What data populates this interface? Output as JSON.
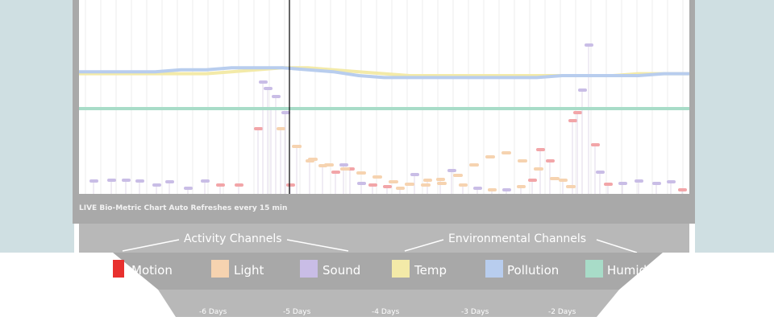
{
  "banner_text": "LIVE Bio-Metric Chart Auto Refreshes every 15 min",
  "groups": {
    "activity_label": "Activity Channels",
    "environmental_label": "Environmental  Channels"
  },
  "channels": [
    {
      "label": "Motion",
      "color": "#e8302e"
    },
    {
      "label": "Light",
      "color": "#f6d3b0"
    },
    {
      "label": "Sound",
      "color": "#c9bde6"
    },
    {
      "label": "Temp",
      "color": "#f3eaa8"
    },
    {
      "label": "Pollution",
      "color": "#b8cdee"
    },
    {
      "label": "Humidity",
      "color": "#a8dcc8"
    }
  ],
  "day_labels": [
    "-6 Days",
    "-5 Days",
    "-4 Days",
    "-3 Days",
    "-2 Days"
  ],
  "colors": {
    "page_bg": "#cfdfe2",
    "frame": "#a9a9a9",
    "legend_band": "#b8b8b8",
    "lower_panel": "#a8a8a8",
    "now_marker": "#000000"
  },
  "chart_data": {
    "type": "line",
    "series": [
      {
        "name": "Temp",
        "values": [
          0.62,
          0.62,
          0.62,
          0.62,
          0.62,
          0.62,
          0.63,
          0.64,
          0.65,
          0.65,
          0.64,
          0.63,
          0.62,
          0.61,
          0.61,
          0.61,
          0.61,
          0.61,
          0.61,
          0.61,
          0.61,
          0.61,
          0.62,
          0.62,
          0.62
        ]
      },
      {
        "name": "Pollution",
        "values": [
          0.63,
          0.63,
          0.63,
          0.63,
          0.64,
          0.64,
          0.65,
          0.65,
          0.65,
          0.64,
          0.63,
          0.61,
          0.6,
          0.6,
          0.6,
          0.6,
          0.6,
          0.6,
          0.6,
          0.61,
          0.61,
          0.61,
          0.61,
          0.62,
          0.62
        ]
      },
      {
        "name": "Humidity",
        "values": [
          0.44,
          0.44,
          0.44,
          0.44,
          0.44,
          0.44,
          0.44,
          0.44,
          0.44,
          0.44,
          0.44,
          0.44,
          0.44,
          0.44,
          0.44,
          0.44,
          0.44,
          0.44,
          0.44,
          0.44,
          0.44,
          0.44,
          0.44,
          0.44,
          0.44
        ]
      }
    ]
  }
}
